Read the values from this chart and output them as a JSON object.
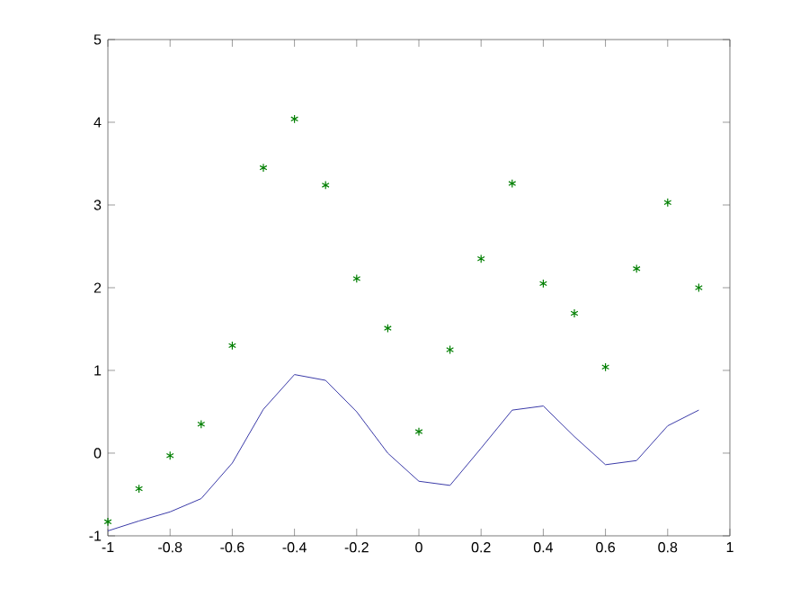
{
  "chart_data": {
    "type": "line",
    "x": [
      -1,
      -0.9,
      -0.8,
      -0.7,
      -0.6,
      -0.5,
      -0.4,
      -0.3,
      -0.2,
      -0.1,
      0,
      0.1,
      0.2,
      0.3,
      0.4,
      0.5,
      0.6,
      0.7,
      0.8,
      0.9
    ],
    "series": [
      {
        "type": "scatter",
        "marker": "cross",
        "color": "#007f00",
        "values": [
          -0.83,
          -0.43,
          -0.03,
          0.35,
          1.3,
          3.45,
          4.04,
          3.24,
          2.11,
          1.51,
          0.26,
          1.25,
          2.35,
          3.26,
          2.05,
          1.69,
          1.04,
          2.23,
          3.03,
          2.0
        ]
      },
      {
        "type": "line",
        "marker": "none",
        "line_style": "solid",
        "color": "#3a3aa8",
        "values": [
          -0.94,
          -0.82,
          -0.71,
          -0.55,
          -0.12,
          0.53,
          0.95,
          0.88,
          0.5,
          0.0,
          -0.34,
          -0.39,
          0.06,
          0.52,
          0.57,
          0.2,
          -0.14,
          -0.09,
          0.33,
          0.52
        ]
      }
    ],
    "xlim": [
      -1,
      1
    ],
    "ylim": [
      -1,
      5
    ],
    "xticks": [
      -1,
      -0.8,
      -0.6,
      -0.4,
      -0.2,
      0,
      0.2,
      0.4,
      0.6,
      0.8,
      1
    ],
    "yticks": [
      -1,
      0,
      1,
      2,
      3,
      4,
      5
    ],
    "grid": false
  }
}
